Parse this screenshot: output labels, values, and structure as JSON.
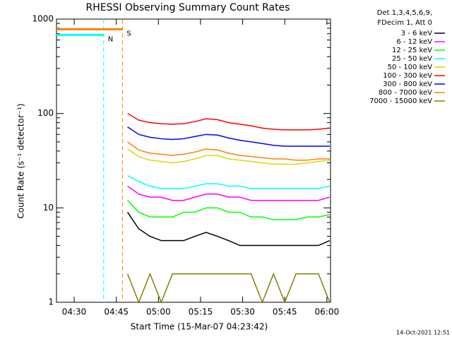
{
  "chart_data": {
    "type": "line",
    "title": "RHESSI Observing Summary Count Rates",
    "x_label": "Start Time (15-Mar-07 04:23:42)",
    "y_label": "Count Rate (s⁻¹ detector⁻¹)",
    "legend_header": [
      "Det 1,3,4,5,6,9,",
      "FDecim 1, Att 0"
    ],
    "footer": "14-Oct-2021 12:51",
    "log_y": true,
    "legend": "right",
    "xlim": [
      263.7,
      361.3
    ],
    "xticks": [
      {
        "value": 270,
        "label": "04:30"
      },
      {
        "value": 285,
        "label": "04:45"
      },
      {
        "value": 300,
        "label": "05:00"
      },
      {
        "value": 315,
        "label": "05:15"
      },
      {
        "value": 330,
        "label": "05:30"
      },
      {
        "value": 345,
        "label": "05:45"
      },
      {
        "value": 360,
        "label": "06:00"
      }
    ],
    "ylim": [
      1,
      1000
    ],
    "yticks": [
      1,
      10,
      100,
      1000
    ],
    "annotations": [
      {
        "label": "N",
        "color": "#00ffff",
        "value": 680,
        "start": 263.7,
        "end": 280.5
      },
      {
        "label": "S",
        "color": "#ff8000",
        "value": 780,
        "start": 263.7,
        "end": 287.2
      }
    ],
    "x": [
      289,
      293,
      297,
      301,
      305,
      309,
      313,
      317,
      321,
      325,
      329,
      333,
      337,
      341,
      345,
      349,
      353,
      357,
      361
    ],
    "series": [
      {
        "name": "3 - 6 keV",
        "color": "#000000",
        "values": [
          9,
          6,
          5,
          4.5,
          4.5,
          4.5,
          5,
          5.5,
          5,
          4.5,
          4,
          4,
          4,
          4,
          4,
          4,
          4,
          4,
          4.5
        ]
      },
      {
        "name": "6 - 12 keV",
        "color": "#ff00ff",
        "values": [
          17,
          14,
          13,
          13,
          12,
          12,
          13,
          14,
          14,
          13,
          13,
          12,
          12,
          12,
          12,
          12,
          12,
          12,
          13
        ]
      },
      {
        "name": "12 - 25 keV",
        "color": "#00ff00",
        "values": [
          12,
          9,
          8,
          8,
          8,
          9,
          9,
          10,
          10,
          9,
          9,
          8,
          8,
          7.5,
          7.5,
          7.5,
          8,
          8,
          8.5
        ]
      },
      {
        "name": "25 - 50 keV",
        "color": "#00ffff",
        "values": [
          22,
          19,
          17,
          16,
          16,
          16,
          17,
          18,
          18,
          17,
          17,
          16,
          16,
          16,
          16,
          16,
          16,
          16,
          17
        ]
      },
      {
        "name": "50 - 100 keV",
        "color": "#d8d800",
        "values": [
          42,
          35,
          32,
          31,
          30,
          31,
          33,
          36,
          36,
          33,
          32,
          31,
          30,
          29,
          29,
          29,
          30,
          31,
          32
        ]
      },
      {
        "name": "100 - 300 keV",
        "color": "#ff0000",
        "values": [
          100,
          85,
          80,
          78,
          77,
          78,
          82,
          88,
          86,
          80,
          77,
          74,
          70,
          68,
          67,
          67,
          67,
          68,
          70
        ]
      },
      {
        "name": "300 - 800 keV",
        "color": "#0000ff",
        "values": [
          72,
          60,
          56,
          54,
          53,
          54,
          57,
          60,
          59,
          55,
          52,
          50,
          48,
          46,
          45,
          45,
          45,
          45,
          45
        ]
      },
      {
        "name": "800 - 7000 keV",
        "color": "#ff8000",
        "values": [
          50,
          41,
          38,
          37,
          36,
          37,
          39,
          42,
          41,
          38,
          36,
          35,
          34,
          33,
          33,
          32,
          32,
          33,
          33
        ]
      },
      {
        "name": "7000 - 15000 keV",
        "color": "#808000",
        "values": [
          2,
          1,
          2,
          1,
          2,
          2,
          2,
          2,
          2,
          2,
          2,
          2,
          1,
          2,
          1,
          2,
          2,
          2,
          1
        ]
      }
    ]
  }
}
